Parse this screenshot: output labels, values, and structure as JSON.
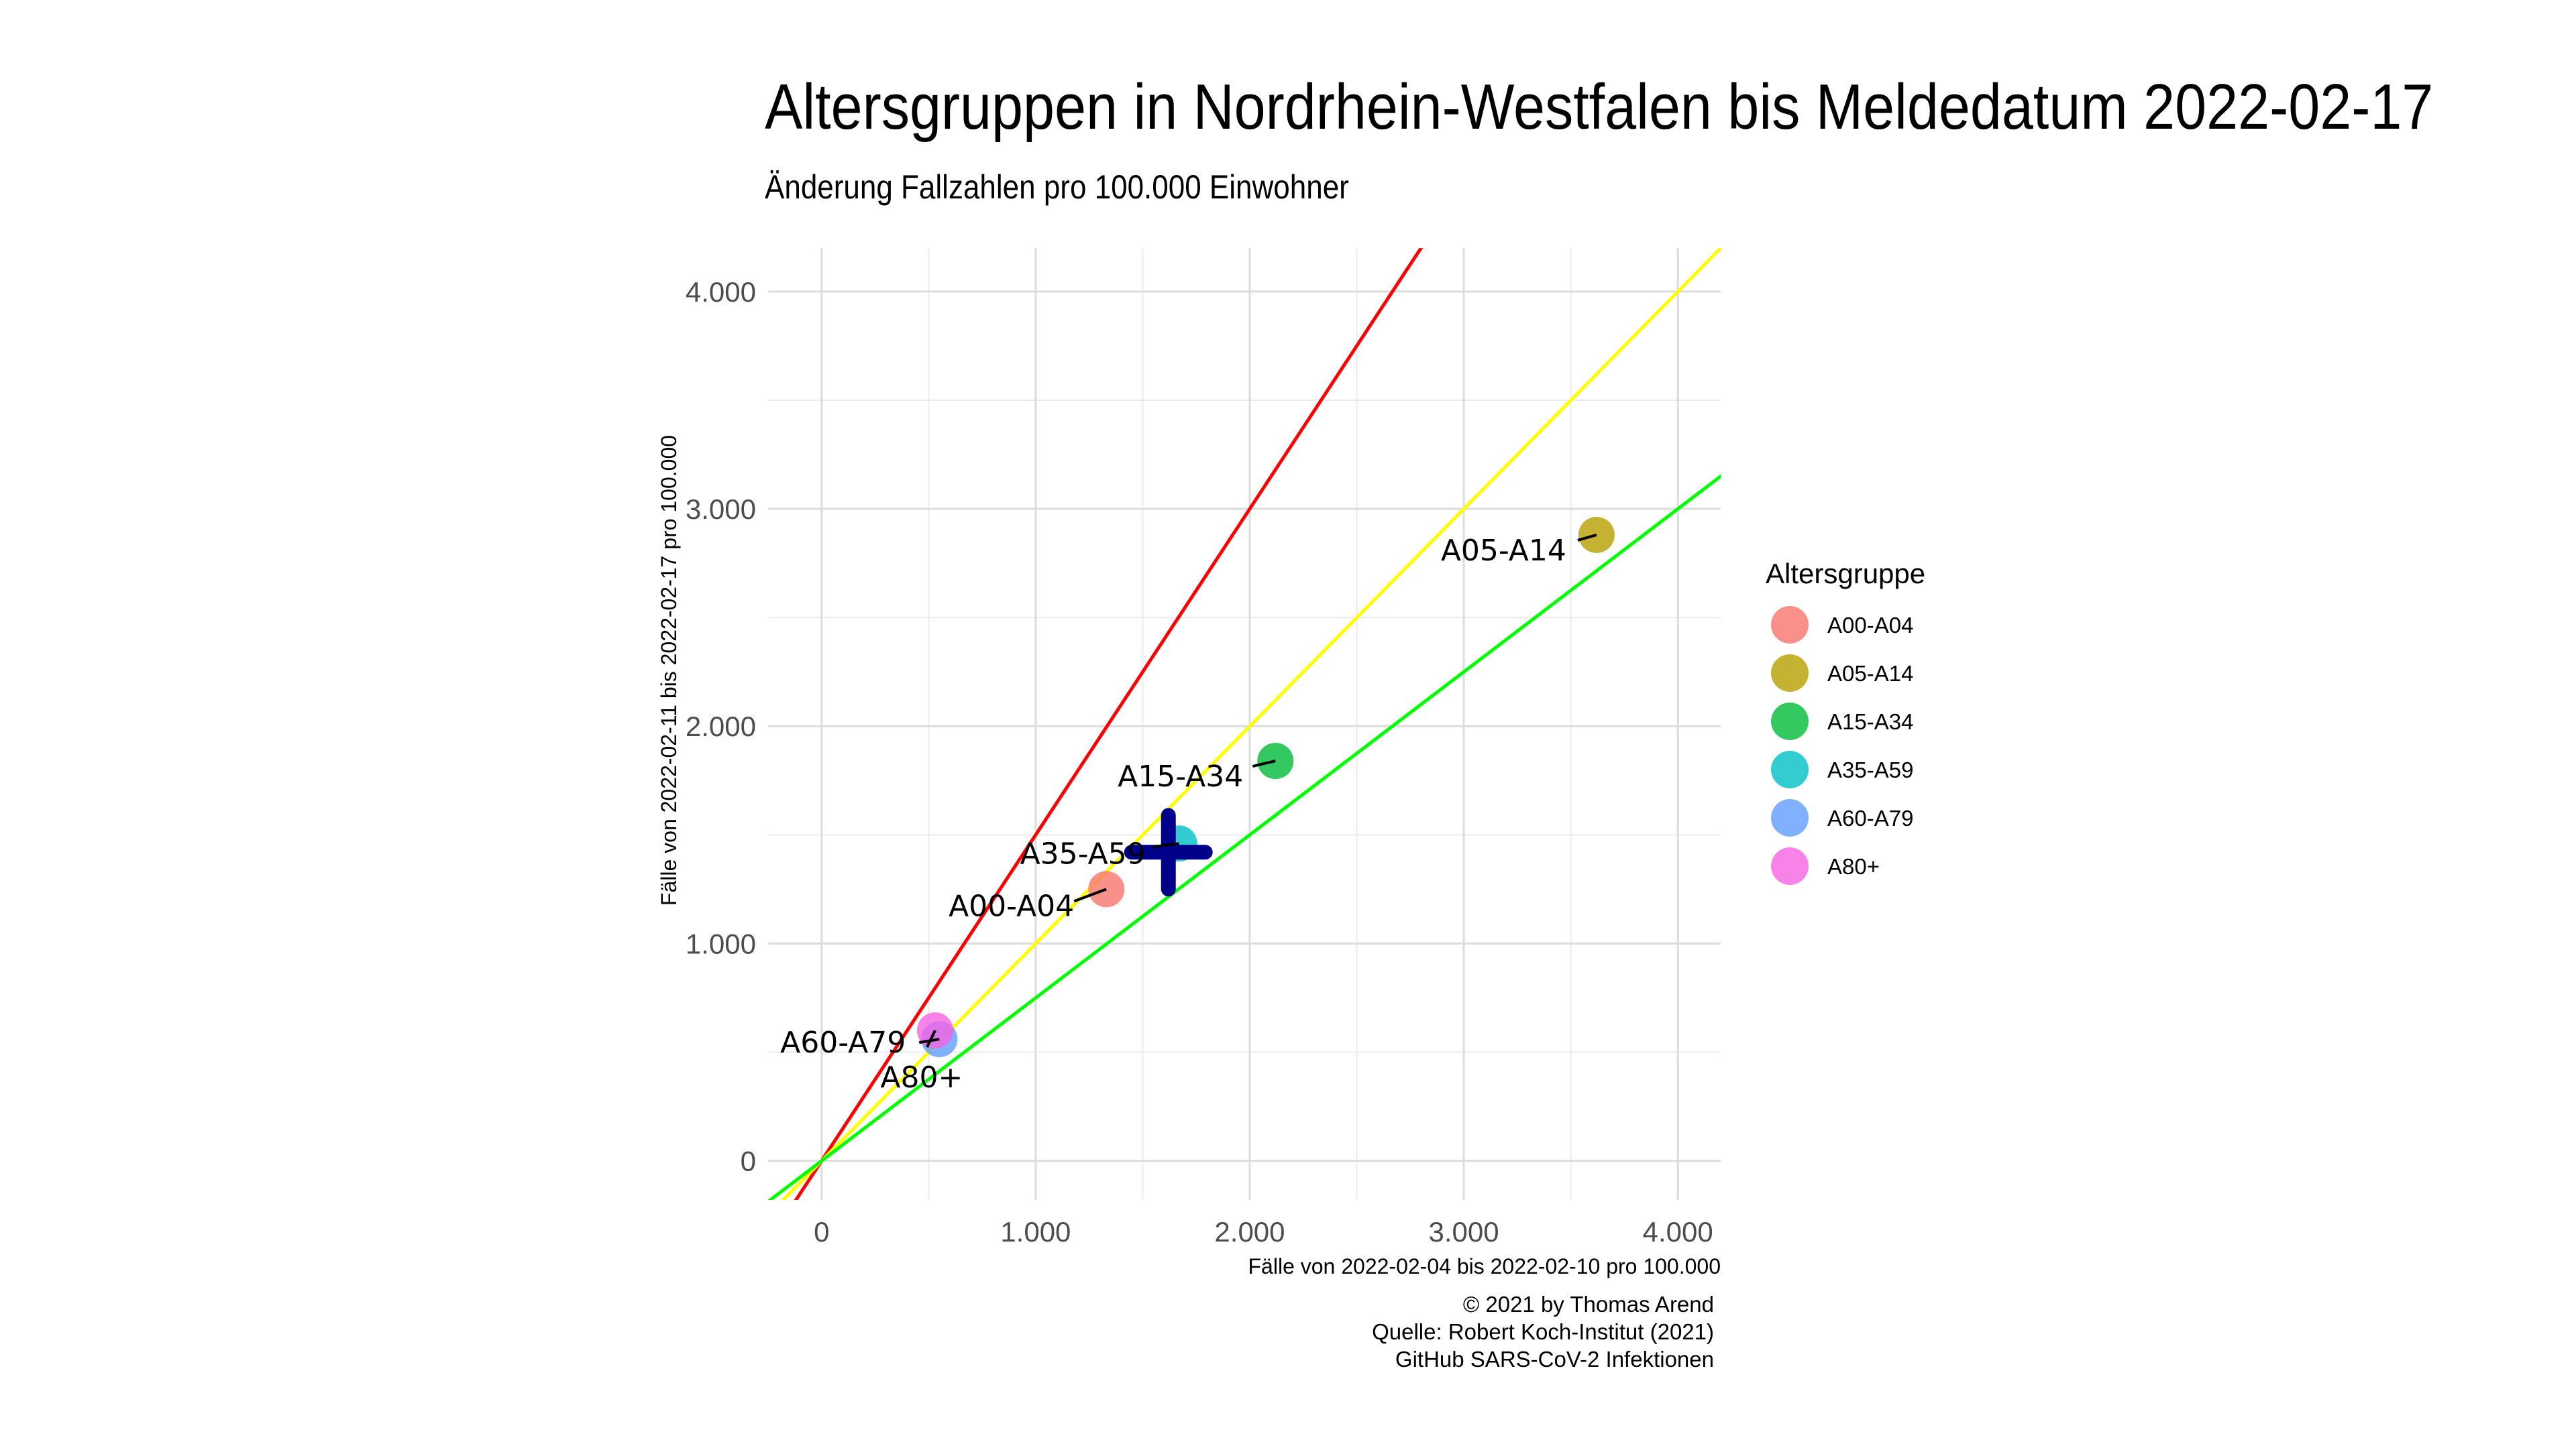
{
  "title": "Altersgruppen in Nordrhein-Westfalen bis Meldedatum 2022-02-17",
  "subtitle": "Änderung Fallzahlen pro 100.000 Einwohner",
  "caption": [
    "© 2021 by Thomas Arend",
    "Quelle: Robert Koch-Institut (2021)",
    "GitHub SARS-CoV-2 Infektionen"
  ],
  "chart_data": {
    "type": "scatter",
    "title": "Altersgruppen in Nordrhein-Westfalen bis Meldedatum 2022-02-17",
    "subtitle": "Änderung Fallzahlen pro 100.000 Einwohner",
    "xlabel": "Fälle von 2022-02-04 bis 2022-02-10 pro 100.000",
    "ylabel": "Fälle von 2022-02-11 bis 2022-02-17 pro 100.000",
    "xlim": [
      -250,
      4200
    ],
    "ylim": [
      -180,
      4200
    ],
    "x_ticks": [
      0,
      1000,
      2000,
      3000,
      4000
    ],
    "x_tick_labels": [
      "0",
      "1.000",
      "2.000",
      "3.000",
      "4.000"
    ],
    "y_ticks": [
      0,
      1000,
      2000,
      3000,
      4000
    ],
    "y_tick_labels": [
      "0",
      "1.000",
      "2.000",
      "3.000",
      "4.000"
    ],
    "grid": true,
    "legend_title": "Altersgruppe",
    "legend_position": "right",
    "series": [
      {
        "name": "A00-A04",
        "x": 1330,
        "y": 1250,
        "color": "#F8766D"
      },
      {
        "name": "A05-A14",
        "x": 3620,
        "y": 2880,
        "color": "#B79F00"
      },
      {
        "name": "A15-A34",
        "x": 2120,
        "y": 1840,
        "color": "#00BA38"
      },
      {
        "name": "A35-A59",
        "x": 1670,
        "y": 1460,
        "color": "#00BFC4"
      },
      {
        "name": "A60-A79",
        "x": 550,
        "y": 560,
        "color": "#619CFF"
      },
      {
        "name": "A80+",
        "x": 530,
        "y": 600,
        "color": "#F564E3"
      }
    ],
    "reference_lines": [
      {
        "slope": 1.5,
        "color": "#FF0000"
      },
      {
        "slope": 1.0,
        "color": "#FFFF00"
      },
      {
        "slope": 0.75,
        "color": "#00FF00"
      }
    ],
    "overall_marker": {
      "x": 1620,
      "y": 1420,
      "color": "#00008B"
    }
  }
}
